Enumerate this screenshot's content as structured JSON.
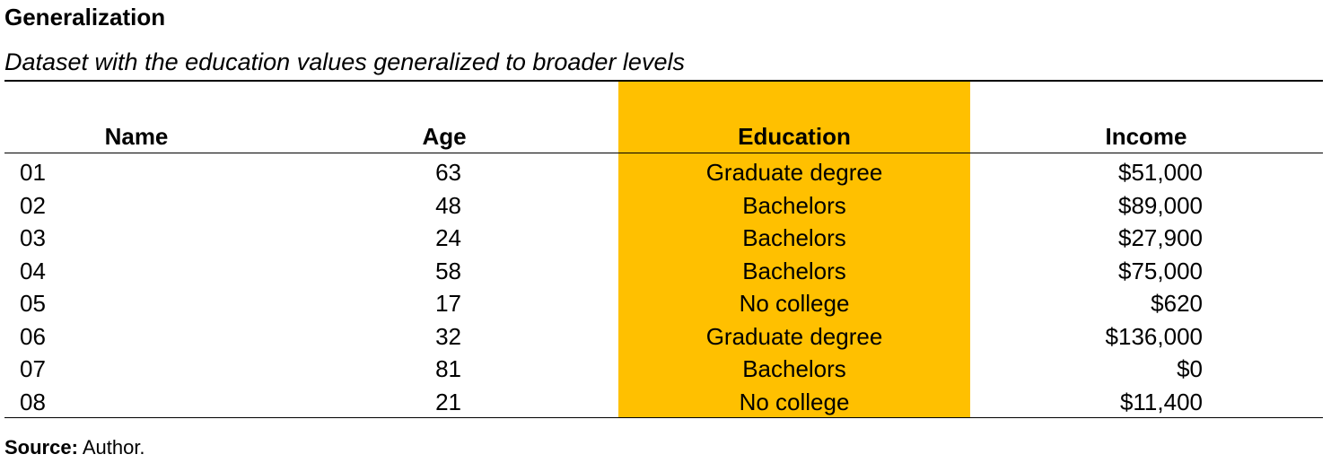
{
  "title": "Generalization",
  "subtitle": "Dataset with the education values generalized to broader levels",
  "colors": {
    "highlight": "#FFC000",
    "rule": "#000000",
    "text": "#000000"
  },
  "table": {
    "headers": {
      "name": "Name",
      "age": "Age",
      "education": "Education",
      "income": "Income"
    },
    "rows": [
      {
        "name": "01",
        "age": "63",
        "education": "Graduate degree",
        "income": "$51,000"
      },
      {
        "name": "02",
        "age": "48",
        "education": "Bachelors",
        "income": "$89,000"
      },
      {
        "name": "03",
        "age": "24",
        "education": "Bachelors",
        "income": "$27,900"
      },
      {
        "name": "04",
        "age": "58",
        "education": "Bachelors",
        "income": "$75,000"
      },
      {
        "name": "05",
        "age": "17",
        "education": "No college",
        "income": "$620"
      },
      {
        "name": "06",
        "age": "32",
        "education": "Graduate degree",
        "income": "$136,000"
      },
      {
        "name": "07",
        "age": "81",
        "education": "Bachelors",
        "income": "$0"
      },
      {
        "name": "08",
        "age": "21",
        "education": "No college",
        "income": "$11,400"
      }
    ]
  },
  "source": {
    "label": "Source:",
    "text": "Author."
  }
}
